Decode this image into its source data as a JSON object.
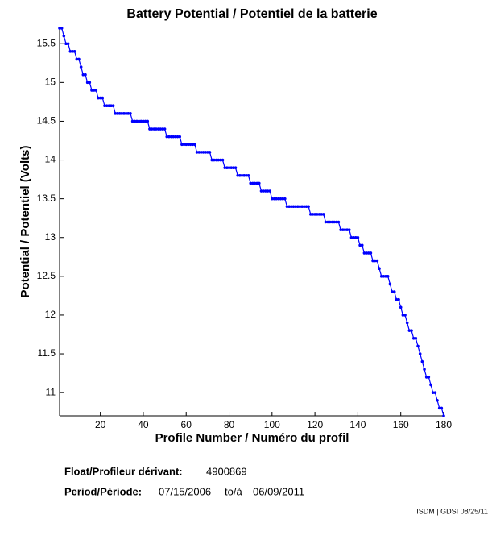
{
  "chart_data": {
    "type": "line",
    "title": "Battery Potential / Potentiel de la batterie",
    "xlabel": "Profile Number / Numéro du profil",
    "ylabel": "Potential / Potentiel (Volts)",
    "x": [
      1,
      2,
      3,
      4,
      5,
      6,
      7,
      8,
      9,
      10,
      11,
      12,
      13,
      14,
      15,
      16,
      17,
      18,
      19,
      20,
      21,
      22,
      23,
      24,
      25,
      26,
      27,
      28,
      29,
      30,
      31,
      32,
      33,
      34,
      35,
      36,
      37,
      38,
      39,
      40,
      41,
      42,
      43,
      44,
      45,
      46,
      47,
      48,
      49,
      50,
      51,
      52,
      53,
      54,
      55,
      56,
      57,
      58,
      59,
      60,
      61,
      62,
      63,
      64,
      65,
      66,
      67,
      68,
      69,
      70,
      71,
      72,
      73,
      74,
      75,
      76,
      77,
      78,
      79,
      80,
      81,
      82,
      83,
      84,
      85,
      86,
      87,
      88,
      89,
      90,
      91,
      92,
      93,
      94,
      95,
      96,
      97,
      98,
      99,
      100,
      101,
      102,
      103,
      104,
      105,
      106,
      107,
      108,
      109,
      110,
      111,
      112,
      113,
      114,
      115,
      116,
      117,
      118,
      119,
      120,
      121,
      122,
      123,
      124,
      125,
      126,
      127,
      128,
      129,
      130,
      131,
      132,
      133,
      134,
      135,
      136,
      137,
      138,
      139,
      140,
      141,
      142,
      143,
      144,
      145,
      146,
      147,
      148,
      149,
      150,
      151,
      152,
      153,
      154,
      155,
      156,
      157,
      158,
      159,
      160,
      161,
      162,
      163,
      164,
      165,
      166,
      167,
      168,
      169,
      170,
      171,
      172,
      173,
      174,
      175,
      176,
      177,
      178,
      179,
      180
    ],
    "series": [
      {
        "name": "Battery Potential",
        "color": "#0000ff",
        "values": [
          15.7,
          15.7,
          15.6,
          15.5,
          15.5,
          15.4,
          15.4,
          15.4,
          15.3,
          15.3,
          15.2,
          15.1,
          15.1,
          15,
          15,
          14.9,
          14.9,
          14.9,
          14.8,
          14.8,
          14.8,
          14.7,
          14.7,
          14.7,
          14.7,
          14.7,
          14.6,
          14.6,
          14.6,
          14.6,
          14.6,
          14.6,
          14.6,
          14.6,
          14.5,
          14.5,
          14.5,
          14.5,
          14.5,
          14.5,
          14.5,
          14.5,
          14.4,
          14.4,
          14.4,
          14.4,
          14.4,
          14.4,
          14.4,
          14.4,
          14.3,
          14.3,
          14.3,
          14.3,
          14.3,
          14.3,
          14.3,
          14.2,
          14.2,
          14.2,
          14.2,
          14.2,
          14.2,
          14.2,
          14.1,
          14.1,
          14.1,
          14.1,
          14.1,
          14.1,
          14.1,
          14,
          14,
          14,
          14,
          14,
          14,
          13.9,
          13.9,
          13.9,
          13.9,
          13.9,
          13.9,
          13.8,
          13.8,
          13.8,
          13.8,
          13.8,
          13.8,
          13.7,
          13.7,
          13.7,
          13.7,
          13.7,
          13.6,
          13.6,
          13.6,
          13.6,
          13.6,
          13.5,
          13.5,
          13.5,
          13.5,
          13.5,
          13.5,
          13.5,
          13.4,
          13.4,
          13.4,
          13.4,
          13.4,
          13.4,
          13.4,
          13.4,
          13.4,
          13.4,
          13.4,
          13.3,
          13.3,
          13.3,
          13.3,
          13.3,
          13.3,
          13.3,
          13.2,
          13.2,
          13.2,
          13.2,
          13.2,
          13.2,
          13.2,
          13.1,
          13.1,
          13.1,
          13.1,
          13.1,
          13,
          13,
          13,
          13,
          12.9,
          12.9,
          12.8,
          12.8,
          12.8,
          12.8,
          12.7,
          12.7,
          12.7,
          12.6,
          12.5,
          12.5,
          12.5,
          12.5,
          12.4,
          12.3,
          12.3,
          12.2,
          12.2,
          12.1,
          12,
          12,
          11.9,
          11.8,
          11.8,
          11.7,
          11.7,
          11.6,
          11.5,
          11.4,
          11.3,
          11.2,
          11.2,
          11.1,
          11,
          11,
          10.9,
          10.8,
          10.8,
          10.7
        ]
      }
    ],
    "xlim": [
      1,
      180
    ],
    "ylim": [
      10.7,
      15.7
    ],
    "xticks": [
      20,
      40,
      60,
      80,
      100,
      120,
      140,
      160,
      180
    ],
    "yticks": [
      11,
      11.5,
      12,
      12.5,
      13,
      13.5,
      14,
      14.5,
      15,
      15.5
    ],
    "grid": false,
    "float_label": "Float/Profileur dérivant:",
    "float_id": "4900869",
    "period_label": "Period/Période:",
    "period_start": "07/15/2006",
    "period_sep": "to/à",
    "period_end": "06/09/2011",
    "footer": "ISDM | GDSI 08/25/11"
  }
}
